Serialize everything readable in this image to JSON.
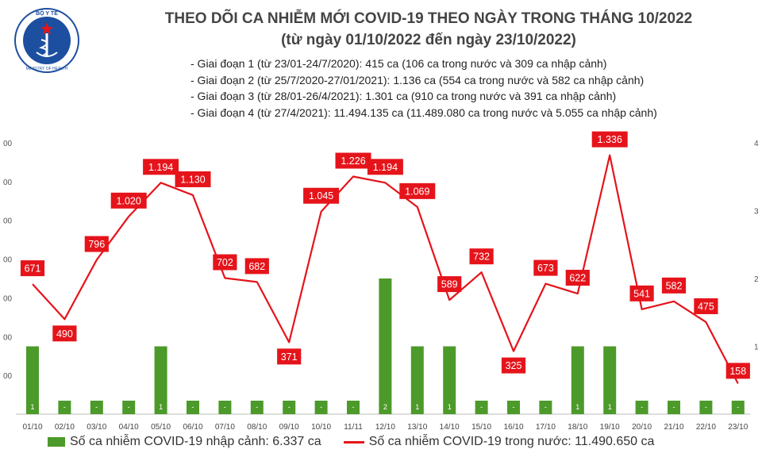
{
  "header": {
    "logo_text_top": "BỘ Y TẾ",
    "logo_text_bottom": "MINISTRY OF HEALTH",
    "title_line1": "THEO DÕI CA NHIỄM MỚI COVID-19 THEO NGÀY TRONG THÁNG 10/2022",
    "title_line2": "(từ ngày 01/10/2022 đến ngày 23/10/2022)"
  },
  "notes": [
    "- Giai đoạn 1 (từ 23/01-24/7/2020): 415 ca (106 ca trong nước và 309 ca nhập cảnh)",
    "- Giai đoạn 2 (từ 25/7/2020-27/01/2021): 1.136 ca (554 ca trong nước và 582 ca nhập cảnh)",
    "- Giai đoạn 3 (từ 28/01-26/4/2021): 1.301 ca (910 ca trong nước và 391 ca nhập cảnh)",
    "- Giai đoạn 4 (từ 27/4/2021): 11.494.135 ca (11.489.080 ca trong nước và 5.055 ca nhập cảnh)"
  ],
  "colors": {
    "bar": "#4c9a2a",
    "line": "#e5141b",
    "label_bg": "#e5141b",
    "text_dark": "#444444"
  },
  "chart_data": {
    "type": "bar+line",
    "categories": [
      "01/10",
      "02/10",
      "03/10",
      "04/10",
      "05/10",
      "06/10",
      "07/10",
      "08/10",
      "09/10",
      "10/10",
      "11/11",
      "12/10",
      "13/10",
      "14/10",
      "15/10",
      "16/10",
      "17/10",
      "18/10",
      "19/10",
      "20/10",
      "21/10",
      "22/10",
      "23/10"
    ],
    "series": [
      {
        "name": "Số ca nhiễm COVID-19 trong nước: 11.490.650 ca",
        "type": "line",
        "axis": "left",
        "values": [
          671,
          490,
          796,
          1020,
          1194,
          1130,
          702,
          682,
          371,
          1045,
          1226,
          1194,
          1069,
          589,
          732,
          325,
          673,
          622,
          1336,
          541,
          582,
          475,
          158
        ],
        "labels": [
          "671",
          "490",
          "796",
          "1.020",
          "1.194",
          "1.130",
          "702",
          "682",
          "371",
          "1.045",
          "1.226",
          "1.194",
          "1.069",
          "589",
          "732",
          "325",
          "673",
          "622",
          "1.336",
          "541",
          "582",
          "475",
          "158"
        ]
      },
      {
        "name": "Số ca nhiễm COVID-19 nhập cảnh: 6.337 ca",
        "type": "bar",
        "axis": "right",
        "values": [
          1,
          0,
          0,
          0,
          1,
          0,
          0,
          0,
          0,
          0,
          0,
          2,
          1,
          1,
          0,
          0,
          0,
          1,
          1,
          0,
          0,
          0,
          0
        ],
        "labels": [
          "1",
          "-",
          "-",
          "-",
          "1",
          "-",
          "-",
          "-",
          "-",
          "-",
          "-",
          "2",
          "1",
          "1",
          "-",
          "-",
          "-",
          "1",
          "1",
          "-",
          "-",
          "-",
          "-"
        ]
      }
    ],
    "left_axis": {
      "ylim": [
        0,
        1400
      ],
      "ticks": [
        200,
        400,
        600,
        800,
        1000,
        1200,
        1400
      ],
      "tick_labels": [
        "00",
        "00",
        "00",
        "00",
        "00",
        "00",
        "00"
      ]
    },
    "right_axis": {
      "ylim": [
        0,
        4
      ],
      "ticks": [
        1,
        2,
        3,
        4
      ],
      "tick_labels": [
        "1",
        "2",
        "3",
        "4"
      ]
    },
    "grid": false,
    "legend": "bottom"
  }
}
